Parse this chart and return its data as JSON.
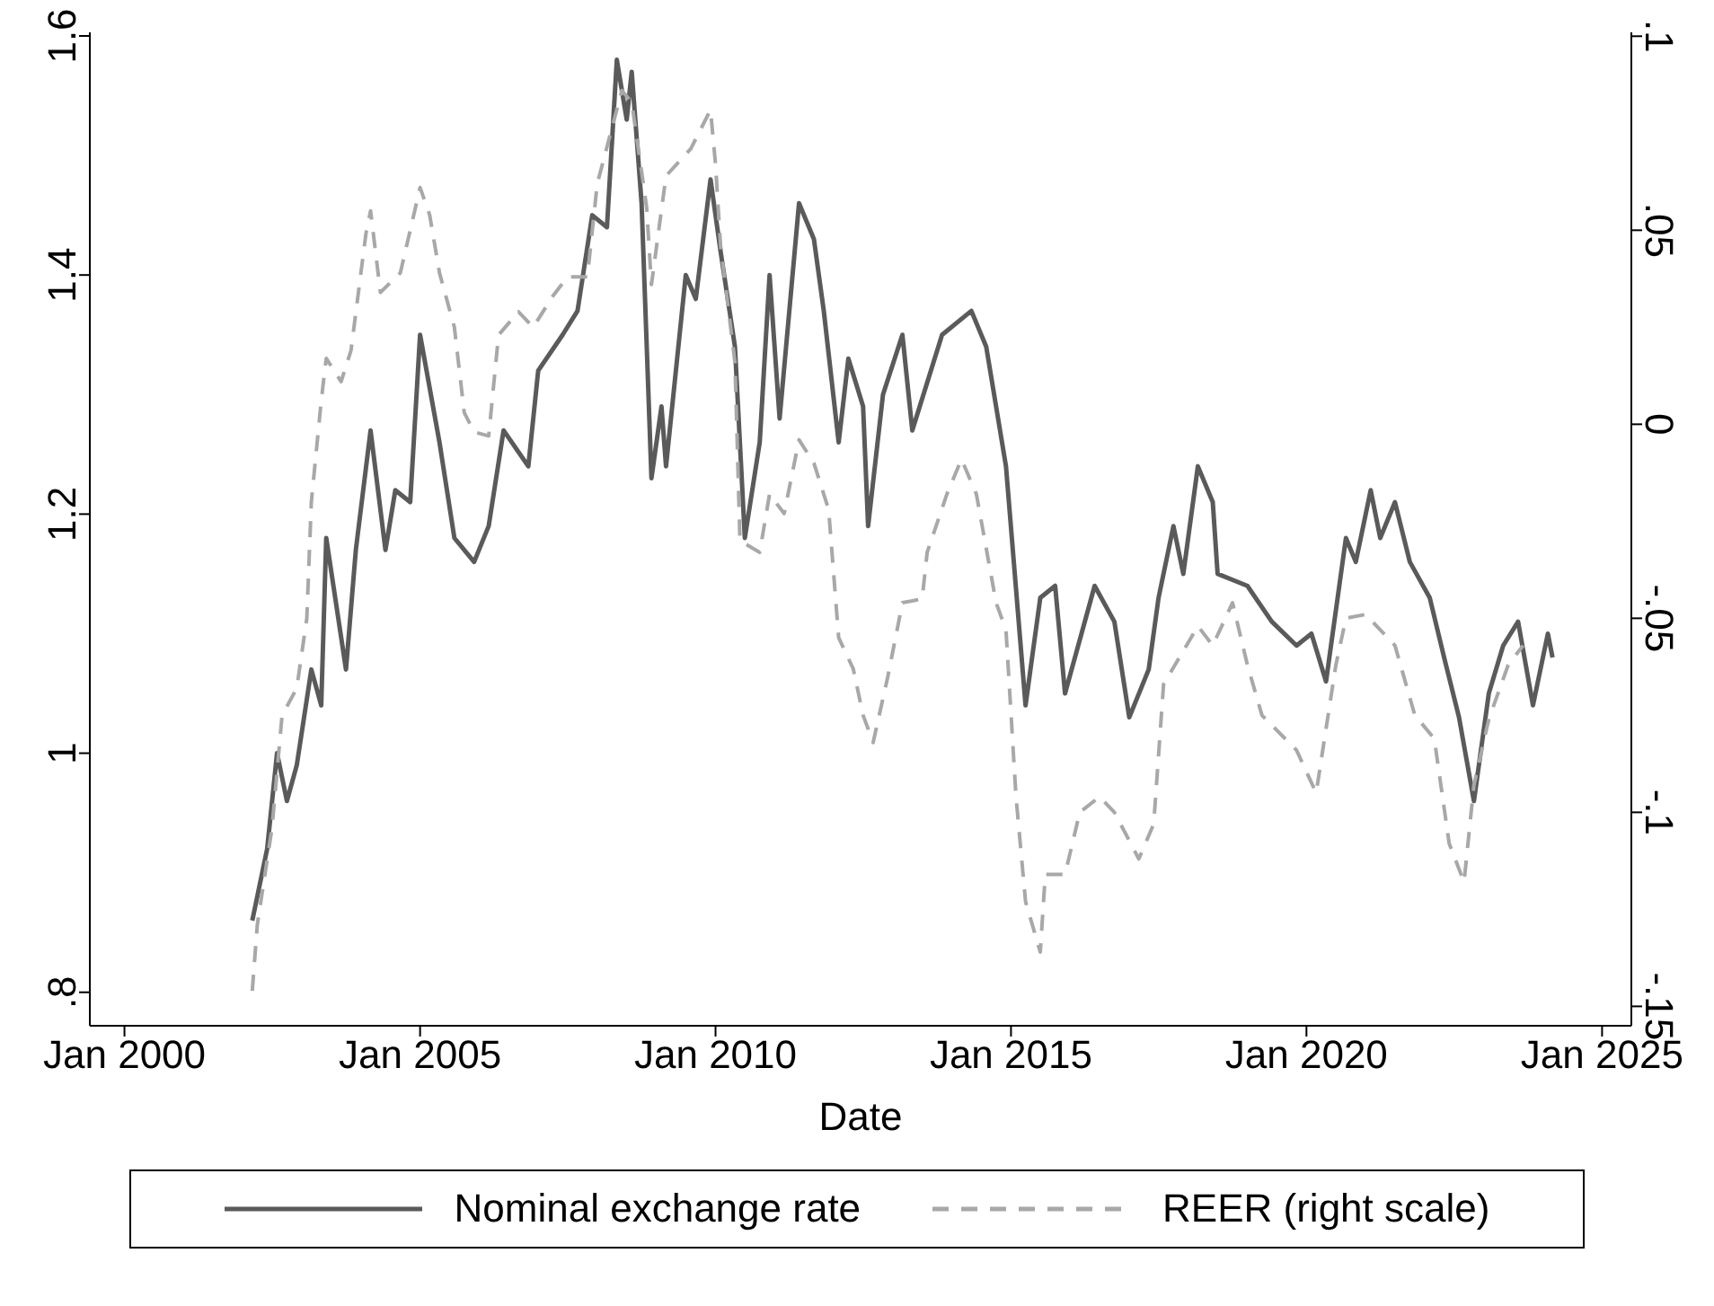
{
  "chart_data": {
    "type": "line",
    "xlabel": "Date",
    "legend": "bottom",
    "xlim": [
      "1999-06",
      "2025-07"
    ],
    "xticks": [
      {
        "value": "2000-01",
        "label": "Jan 2000"
      },
      {
        "value": "2005-01",
        "label": "Jan 2005"
      },
      {
        "value": "2010-01",
        "label": "Jan 2010"
      },
      {
        "value": "2015-01",
        "label": "Jan 2015"
      },
      {
        "value": "2020-01",
        "label": "Jan 2020"
      },
      {
        "value": "2025-01",
        "label": "Jan 2025"
      }
    ],
    "ylim": [
      0.772,
      1.603
    ],
    "yticks": [
      {
        "value": 0.8,
        "label": ".8"
      },
      1,
      1.2,
      1.4,
      1.6
    ],
    "y2lim": [
      -0.155,
      0.101
    ],
    "y2ticks": [
      {
        "value": -0.15,
        "label": "-.15"
      },
      {
        "value": -0.1,
        "label": "-.1"
      },
      {
        "value": -0.05,
        "label": "-.05"
      },
      0,
      {
        "value": 0.05,
        "label": ".05"
      },
      {
        "value": 0.1,
        "label": ".1"
      }
    ],
    "series": [
      {
        "name": "Nominal exchange rate",
        "axis": "y",
        "color": "#5a5a5a",
        "line_style": "solid",
        "x": [
          "2002-03",
          "2002-06",
          "2002-08",
          "2002-10",
          "2002-12",
          "2003-03",
          "2003-05",
          "2003-06",
          "2003-10",
          "2003-12",
          "2004-03",
          "2004-06",
          "2004-08",
          "2004-11",
          "2005-01",
          "2005-05",
          "2005-08",
          "2005-12",
          "2006-03",
          "2006-06",
          "2006-11",
          "2007-01",
          "2007-06",
          "2007-09",
          "2007-12",
          "2008-03",
          "2008-05",
          "2008-07",
          "2008-08",
          "2008-10",
          "2008-12",
          "2009-02",
          "2009-03",
          "2009-07",
          "2009-09",
          "2009-12",
          "2010-02",
          "2010-05",
          "2010-07",
          "2010-10",
          "2010-12",
          "2011-02",
          "2011-06",
          "2011-09",
          "2011-11",
          "2012-02",
          "2012-04",
          "2012-07",
          "2012-08",
          "2012-11",
          "2013-03",
          "2013-05",
          "2013-11",
          "2014-05",
          "2014-08",
          "2014-12",
          "2015-04",
          "2015-07",
          "2015-10",
          "2015-12",
          "2016-06",
          "2016-10",
          "2017-01",
          "2017-05",
          "2017-07",
          "2017-10",
          "2017-12",
          "2018-03",
          "2018-06",
          "2018-07",
          "2019-01",
          "2019-06",
          "2019-11",
          "2020-02",
          "2020-05",
          "2020-09",
          "2020-11",
          "2021-02",
          "2021-04",
          "2021-07",
          "2021-10",
          "2022-02",
          "2022-05",
          "2022-08",
          "2022-11",
          "2023-02",
          "2023-05",
          "2023-08",
          "2023-11",
          "2024-02",
          "2024-03"
        ],
        "values": [
          0.86,
          0.92,
          1.0,
          0.96,
          0.99,
          1.07,
          1.04,
          1.18,
          1.07,
          1.17,
          1.27,
          1.17,
          1.22,
          1.21,
          1.35,
          1.26,
          1.18,
          1.16,
          1.19,
          1.27,
          1.24,
          1.32,
          1.35,
          1.37,
          1.45,
          1.44,
          1.58,
          1.53,
          1.57,
          1.46,
          1.23,
          1.29,
          1.24,
          1.4,
          1.38,
          1.48,
          1.42,
          1.34,
          1.18,
          1.26,
          1.4,
          1.28,
          1.46,
          1.43,
          1.37,
          1.26,
          1.33,
          1.29,
          1.19,
          1.3,
          1.35,
          1.27,
          1.35,
          1.37,
          1.34,
          1.24,
          1.04,
          1.13,
          1.14,
          1.05,
          1.14,
          1.11,
          1.03,
          1.07,
          1.13,
          1.19,
          1.15,
          1.24,
          1.21,
          1.15,
          1.14,
          1.11,
          1.09,
          1.1,
          1.06,
          1.18,
          1.16,
          1.22,
          1.18,
          1.21,
          1.16,
          1.13,
          1.08,
          1.03,
          0.96,
          1.05,
          1.09,
          1.11,
          1.04,
          1.1,
          1.08
        ]
      },
      {
        "name": "REER (right scale)",
        "axis": "y2",
        "color": "#a8a8a8",
        "line_style": "dashed",
        "x": [
          "2002-03",
          "2002-04",
          "2002-07",
          "2002-09",
          "2002-12",
          "2003-02",
          "2003-03",
          "2003-05",
          "2003-06",
          "2003-09",
          "2003-11",
          "2004-02",
          "2004-03",
          "2004-05",
          "2004-09",
          "2005-01",
          "2005-03",
          "2005-05",
          "2005-08",
          "2005-10",
          "2005-12",
          "2006-03",
          "2006-05",
          "2006-09",
          "2006-12",
          "2007-04",
          "2007-07",
          "2007-11",
          "2008-01",
          "2008-06",
          "2008-08",
          "2008-11",
          "2008-12",
          "2009-03",
          "2009-08",
          "2009-12",
          "2010-01",
          "2010-02",
          "2010-05",
          "2010-06",
          "2010-10",
          "2010-12",
          "2011-03",
          "2011-06",
          "2011-09",
          "2011-12",
          "2012-02",
          "2012-05",
          "2012-07",
          "2012-09",
          "2012-12",
          "2013-03",
          "2013-07",
          "2013-08",
          "2013-12",
          "2014-03",
          "2014-06",
          "2014-10",
          "2014-12",
          "2015-02",
          "2015-04",
          "2015-07",
          "2015-08",
          "2015-12",
          "2016-03",
          "2016-07",
          "2016-10",
          "2017-03",
          "2017-06",
          "2017-08",
          "2018-03",
          "2018-06",
          "2018-10",
          "2019-01",
          "2019-04",
          "2019-11",
          "2020-03",
          "2020-07",
          "2020-09",
          "2021-01",
          "2021-07",
          "2021-11",
          "2022-03",
          "2022-06",
          "2022-09",
          "2022-11",
          "2023-02",
          "2023-06",
          "2023-09"
        ],
        "values": [
          -0.146,
          -0.129,
          -0.104,
          -0.075,
          -0.068,
          -0.05,
          -0.02,
          0.006,
          0.017,
          0.011,
          0.019,
          0.049,
          0.055,
          0.034,
          0.039,
          0.061,
          0.054,
          0.039,
          0.025,
          0.003,
          -0.002,
          -0.003,
          0.023,
          0.029,
          0.025,
          0.033,
          0.038,
          0.038,
          0.062,
          0.086,
          0.083,
          0.056,
          0.036,
          0.064,
          0.071,
          0.081,
          0.067,
          0.046,
          0.016,
          -0.03,
          -0.033,
          -0.018,
          -0.023,
          -0.004,
          -0.01,
          -0.022,
          -0.055,
          -0.063,
          -0.075,
          -0.082,
          -0.065,
          -0.046,
          -0.045,
          -0.033,
          -0.018,
          -0.009,
          -0.018,
          -0.046,
          -0.053,
          -0.096,
          -0.123,
          -0.136,
          -0.116,
          -0.116,
          -0.1,
          -0.096,
          -0.1,
          -0.112,
          -0.103,
          -0.067,
          -0.052,
          -0.057,
          -0.046,
          -0.062,
          -0.075,
          -0.084,
          -0.095,
          -0.062,
          -0.05,
          -0.049,
          -0.057,
          -0.075,
          -0.081,
          -0.108,
          -0.118,
          -0.093,
          -0.076,
          -0.062,
          -0.057
        ]
      }
    ]
  }
}
